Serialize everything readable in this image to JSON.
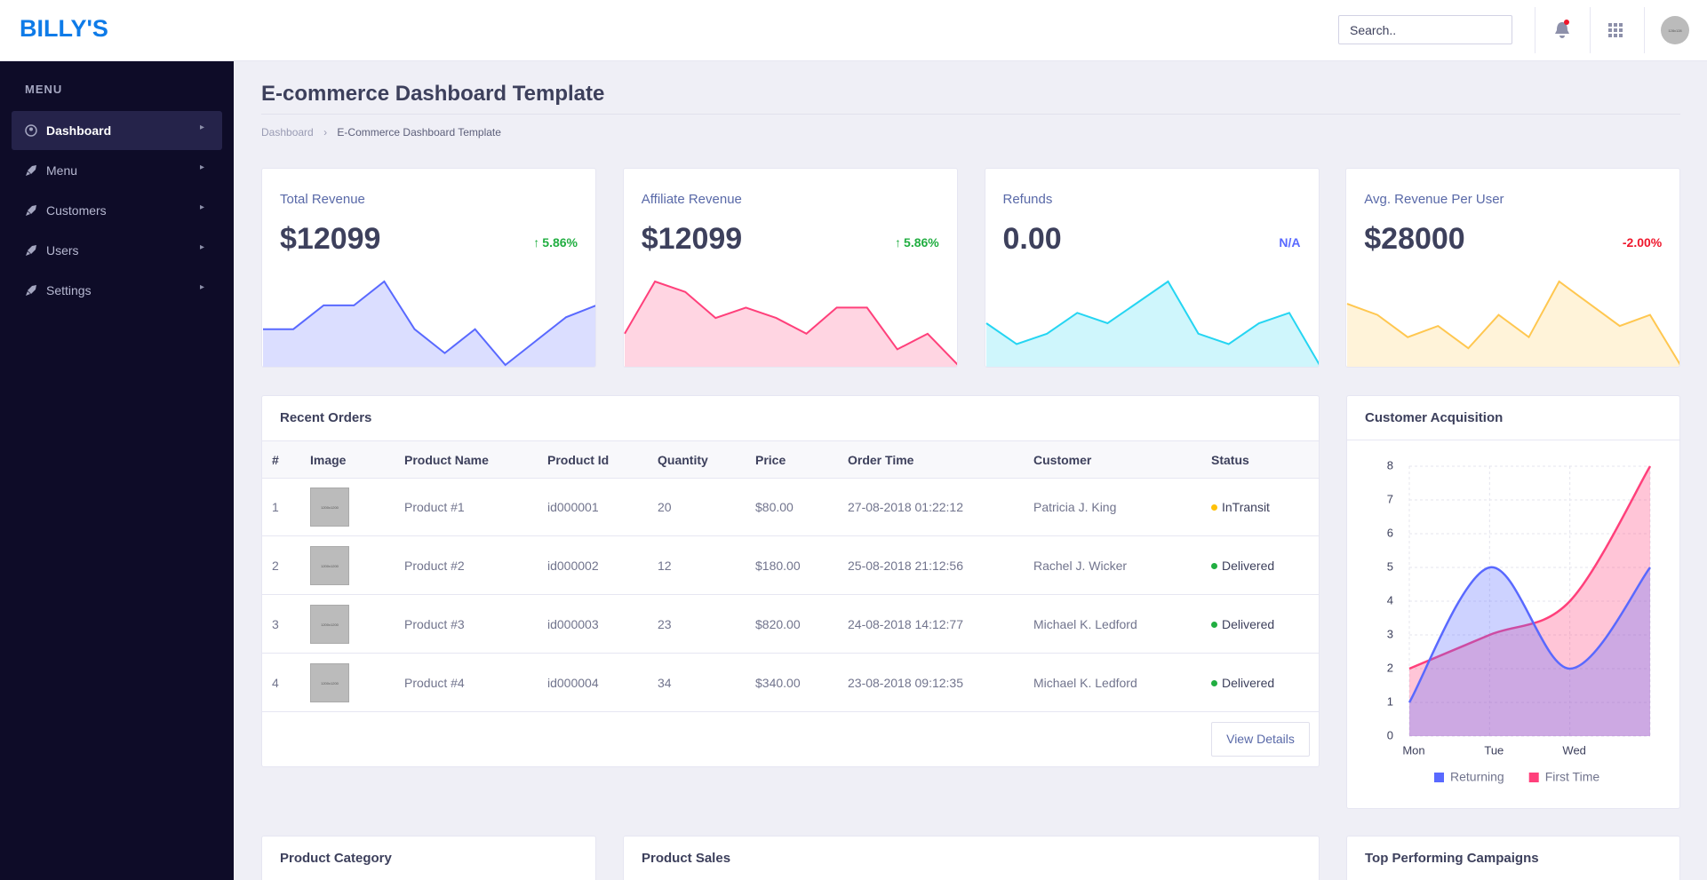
{
  "header": {
    "brand": "BILLY'S",
    "search_placeholder": "Search..",
    "avatar_text": "128x128"
  },
  "sidebar": {
    "title": "MENU",
    "items": [
      "Dashboard",
      "Menu",
      "Customers",
      "Users",
      "Settings"
    ]
  },
  "page": {
    "title": "E-commerce Dashboard Template",
    "breadcrumb": [
      "Dashboard",
      "E-Commerce Dashboard Template"
    ]
  },
  "cards": [
    {
      "title": "Total Revenue",
      "value": "$12099",
      "change": "5.86%",
      "change_color": "#21ae41",
      "up": true,
      "sparkline": {
        "type": "line",
        "color": "#5969ff",
        "values": [
          5,
          5,
          7,
          7,
          9,
          5,
          3,
          5,
          2,
          4,
          6,
          7
        ]
      }
    },
    {
      "title": "Affiliate Revenue",
      "value": "$12099",
      "change": "5.86%",
      "change_color": "#21ae41",
      "up": true,
      "sparkline": {
        "type": "line",
        "color": "#ff407b",
        "values": [
          3,
          8,
          7,
          4.5,
          5.5,
          4.5,
          3,
          5.5,
          5.5,
          1.5,
          3,
          0
        ]
      }
    },
    {
      "title": "Refunds",
      "value": "0.00",
      "change": "N/A",
      "change_color": "#5969ff",
      "up": false,
      "sparkline": {
        "type": "line",
        "color": "#25d5f2",
        "values": [
          4,
          2,
          3,
          5,
          4,
          6,
          8,
          3,
          2,
          4,
          5,
          0
        ]
      }
    },
    {
      "title": "Avg. Revenue Per User",
      "value": "$28000",
      "change": "-2.00%",
      "change_color": "#ef172c",
      "up": false,
      "sparkline": {
        "type": "line",
        "color": "#ffc750",
        "values": [
          5.5,
          4.5,
          2.5,
          3.5,
          1.5,
          4.5,
          2.5,
          7.5,
          5.5,
          3.5,
          4.5,
          0
        ]
      }
    }
  ],
  "orders": {
    "title": "Recent Orders",
    "columns": [
      "#",
      "Image",
      "Product Name",
      "Product Id",
      "Quantity",
      "Price",
      "Order Time",
      "Customer",
      "Status"
    ],
    "image_text": "1200x1200",
    "rows": [
      [
        1,
        "Product #1",
        "id000001",
        20,
        "$80.00",
        "27-08-2018 01:22:12",
        "Patricia J. King",
        "InTransit"
      ],
      [
        2,
        "Product #2",
        "id000002",
        12,
        "$180.00",
        "25-08-2018 21:12:56",
        "Rachel J. Wicker",
        "Delivered"
      ],
      [
        3,
        "Product #3",
        "id000003",
        23,
        "$820.00",
        "24-08-2018 14:12:77",
        "Michael K. Ledford",
        "Delivered"
      ],
      [
        4,
        "Product #4",
        "id000004",
        34,
        "$340.00",
        "23-08-2018 09:12:35",
        "Michael K. Ledford",
        "Delivered"
      ]
    ],
    "status_colors": [
      "#ffc108",
      "#21ae41",
      "#21ae41",
      "#21ae41"
    ],
    "button": "View Details"
  },
  "acquisition": {
    "type": "line",
    "title": "Customer Acquisition",
    "categories": [
      "Mon",
      "Tue",
      "Wed",
      null
    ],
    "ylim": [
      0,
      8
    ],
    "yticks": [
      0,
      1,
      2,
      3,
      4,
      5,
      6,
      7,
      8
    ],
    "grid": true,
    "series": [
      {
        "name": "Returning",
        "color": "#5969ff",
        "values": [
          1,
          5,
          2,
          5
        ]
      },
      {
        "name": "First Time",
        "color": "#ff407b",
        "values": [
          2,
          3,
          4,
          8
        ]
      }
    ]
  },
  "sections": [
    "Product Category",
    "Product Sales",
    "Top Performing Campaigns"
  ]
}
